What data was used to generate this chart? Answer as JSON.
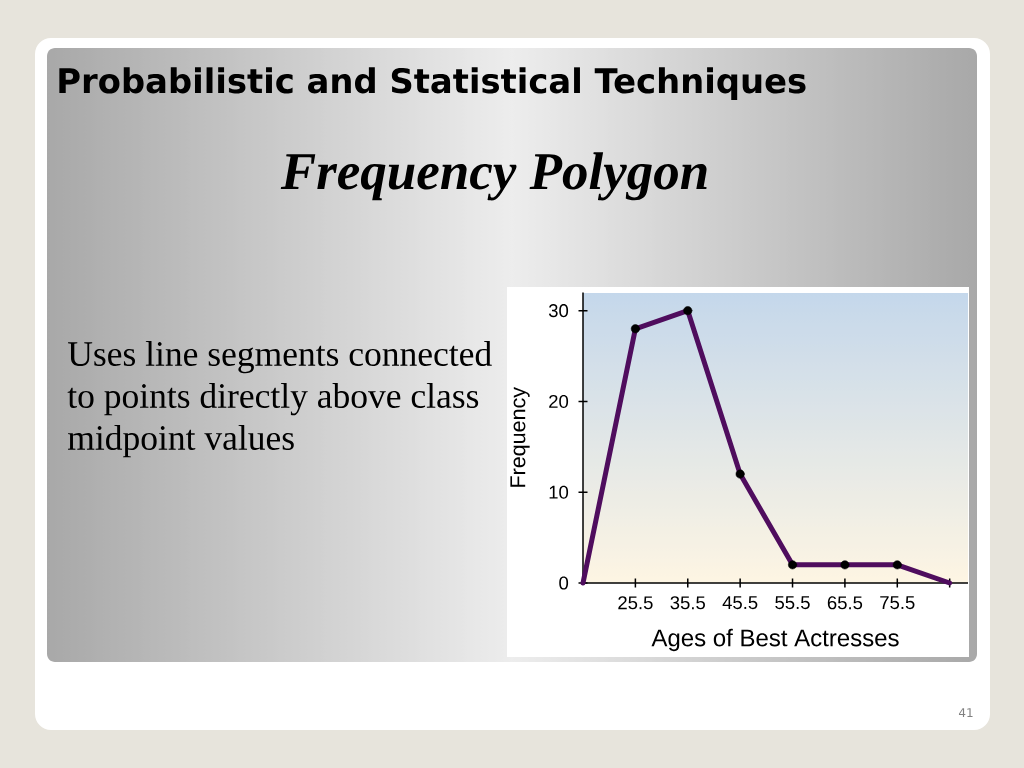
{
  "chart_data": {
    "type": "line",
    "title": "Probabilistic and Statistical Techniques",
    "subtitle": "Frequency Polygon",
    "xlabel": "Ages of Best Actresses",
    "ylabel": "Frequency",
    "x": [
      15.5,
      25.5,
      35.5,
      45.5,
      55.5,
      65.5,
      75.5,
      85.5
    ],
    "values": [
      0,
      28,
      30,
      12,
      2,
      2,
      2,
      0
    ],
    "color": "#4f0d5e",
    "marker": "circle",
    "line_style": "solid",
    "xlim": [
      15.5,
      89
    ],
    "ylim": [
      0,
      32
    ],
    "xticks": [
      25.5,
      35.5,
      45.5,
      55.5,
      65.5,
      75.5,
      {
        "value": 85.5,
        "label": null
      }
    ],
    "yticks": [
      0,
      10,
      20,
      30
    ],
    "annotations": [
      "Uses line segments connected to points directly above class midpoint values",
      "41"
    ]
  }
}
